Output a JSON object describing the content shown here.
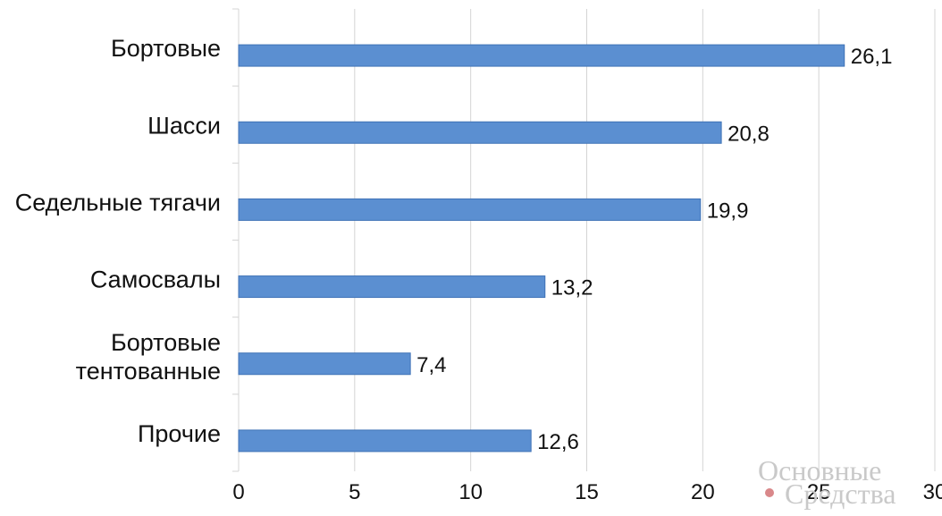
{
  "chart_data": {
    "type": "bar",
    "orientation": "horizontal",
    "categories": [
      "Бортовые",
      "Шасси",
      "Седельные тягачи",
      "Самосвалы",
      "Бортовые тентованные",
      "Прочие"
    ],
    "category_lines": [
      [
        "Бортовые"
      ],
      [
        "Шасси"
      ],
      [
        "Седельные тягачи"
      ],
      [
        "Самосвалы"
      ],
      [
        "Бортовые",
        "тентованные"
      ],
      [
        "Прочие"
      ]
    ],
    "values": [
      26.1,
      20.8,
      19.9,
      13.2,
      7.4,
      12.6
    ],
    "value_labels": [
      "26,1",
      "20,8",
      "19,9",
      "13,2",
      "7,4",
      "12,6"
    ],
    "xlim": [
      0,
      30
    ],
    "xticks": [
      0,
      5,
      10,
      15,
      20,
      25,
      30
    ],
    "grid": true,
    "bar_color": "#5b8fd1",
    "bar_border_color": "#3f72b6",
    "grid_color": "#d4d4d4"
  },
  "watermark": {
    "line1": "Основные",
    "line2": "Средства",
    "dot_color": "#d9888a"
  }
}
